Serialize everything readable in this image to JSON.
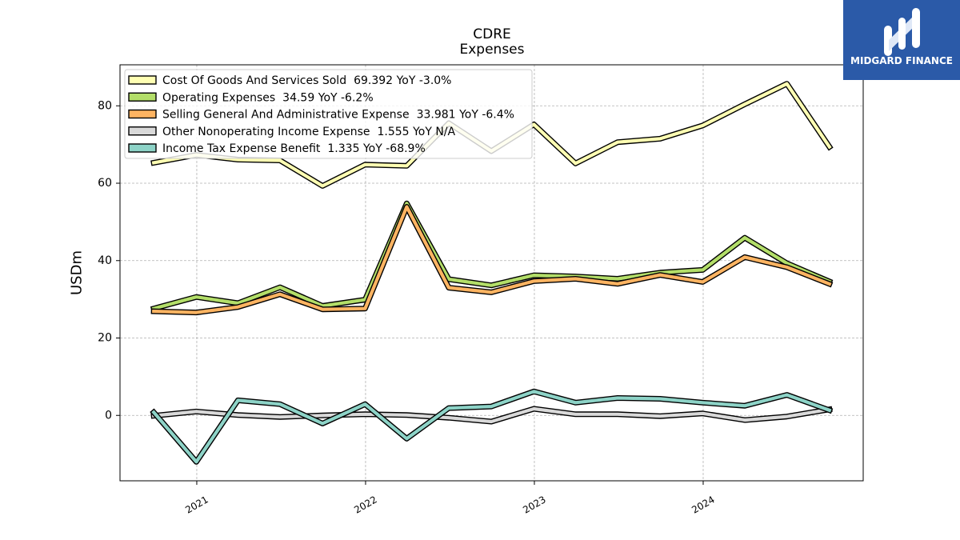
{
  "logo": {
    "text": "MIDGARD FINANCE",
    "icon": "midgard-logo-icon",
    "background": "#2b5aa8",
    "foreground": "#ffffff"
  },
  "chart_data": {
    "type": "line",
    "title": "CDRE",
    "subtitle": "Expenses",
    "ylabel": "USDm",
    "x": [
      "2020-09-30",
      "2020-12-31",
      "2021-03-31",
      "2021-06-30",
      "2021-09-30",
      "2021-12-31",
      "2022-03-31",
      "2022-06-30",
      "2022-09-30",
      "2022-12-31",
      "2023-03-31",
      "2023-06-30",
      "2023-09-30",
      "2023-12-31",
      "2024-03-31",
      "2024-06-30",
      "2024-09-30"
    ],
    "xlim": [
      "2020-07-19",
      "2024-12-12"
    ],
    "xtick_labels": [
      "2021",
      "2022",
      "2023",
      "2024"
    ],
    "ylim": [
      -16.9,
      90.6
    ],
    "yticks": [
      0,
      20,
      40,
      60,
      80
    ],
    "grid": true,
    "legend_position": "top-left",
    "line_outline_color": "#000000",
    "series": [
      {
        "name": "Cost Of Goods And Services Sold",
        "latest": "69.392",
        "change": "YoY -3.0%",
        "color": "#ffffb3",
        "values": [
          65.3,
          67.3,
          66.1,
          65.9,
          59.3,
          64.8,
          64.5,
          75.5,
          68.3,
          75.2,
          65.1,
          70.6,
          71.5,
          74.9,
          80.4,
          85.7,
          69.392
        ]
      },
      {
        "name": "Operating Expenses",
        "latest": "34.59",
        "change": "YoY -6.2%",
        "color": "#b3de69",
        "values": [
          27.6,
          30.6,
          29.0,
          33.1,
          28.3,
          29.9,
          54.8,
          35.2,
          33.6,
          36.2,
          35.9,
          35.3,
          36.9,
          37.6,
          45.9,
          39.3,
          34.59
        ]
      },
      {
        "name": "Selling General And Administrative Expense",
        "latest": "33.981",
        "change": "YoY -6.4%",
        "color": "#fdb462",
        "values": [
          26.9,
          26.6,
          28.0,
          31.3,
          27.4,
          27.6,
          53.9,
          33.0,
          31.8,
          34.7,
          35.3,
          34.0,
          36.3,
          34.5,
          40.9,
          38.3,
          33.981
        ]
      },
      {
        "name": "Other Nonoperating Income Expense",
        "latest": "1.555",
        "change": "YoY N/A",
        "color": "#d9d9d9",
        "values": [
          -0.1,
          1.0,
          0.1,
          -0.4,
          0.0,
          0.3,
          0.1,
          -0.6,
          -1.6,
          1.7,
          0.3,
          0.3,
          -0.2,
          0.5,
          -1.2,
          -0.3,
          1.555
        ]
      },
      {
        "name": "Income Tax Expense Benefit",
        "latest": "1.335",
        "change": "YoY -68.9%",
        "color": "#8dd3c7",
        "values": [
          0.8,
          -12.0,
          3.9,
          2.9,
          -2.1,
          2.9,
          -6.0,
          1.9,
          2.3,
          6.2,
          3.3,
          4.5,
          4.3,
          3.3,
          2.5,
          5.3,
          1.335
        ]
      }
    ]
  }
}
